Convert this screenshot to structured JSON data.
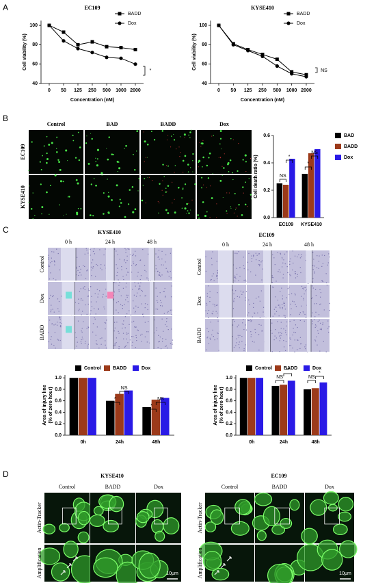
{
  "chart_data": [
    {
      "type": "line",
      "title": "EC109",
      "x_label": "Concentration (nM)",
      "y_label": "Cell viability (%)",
      "categories": [
        "0",
        "50",
        "125",
        "250",
        "500",
        "1000",
        "2000"
      ],
      "series": [
        {
          "name": "BADD",
          "color": "#000000",
          "marker": "square",
          "values": [
            100,
            93,
            80,
            83,
            78,
            77,
            75
          ]
        },
        {
          "name": "Dox",
          "color": "#000000",
          "marker": "circle",
          "values": [
            100,
            84,
            76,
            72,
            67,
            66,
            60
          ]
        }
      ],
      "ylim": [
        40,
        105
      ],
      "yticks": [
        40,
        60,
        80,
        100
      ],
      "legend": "top-right",
      "annotations": [
        "*"
      ]
    },
    {
      "type": "line",
      "title": "KYSE410",
      "x_label": "Concentration (nM)",
      "y_label": "Cell viability (%)",
      "categories": [
        "0",
        "50",
        "125",
        "250",
        "500",
        "1000",
        "2000"
      ],
      "series": [
        {
          "name": "BADD",
          "color": "#000000",
          "marker": "square",
          "values": [
            100,
            81,
            75,
            70,
            65,
            52,
            49
          ]
        },
        {
          "name": "Dox",
          "color": "#000000",
          "marker": "circle",
          "values": [
            100,
            80,
            74,
            68,
            58,
            50,
            47
          ]
        }
      ],
      "ylim": [
        40,
        105
      ],
      "yticks": [
        40,
        60,
        80,
        100
      ],
      "legend": "top-right",
      "annotations": [
        "NS"
      ]
    },
    {
      "type": "bar",
      "y_label": [
        "Cell death ratio (%)"
      ],
      "categories": [
        "EC109",
        "KYSE410"
      ],
      "series": [
        {
          "name": "BAD",
          "color": "#000000",
          "values": [
            0.25,
            0.32
          ]
        },
        {
          "name": "BADD",
          "color": "#9c3a1a",
          "values": [
            0.24,
            0.47
          ]
        },
        {
          "name": "Dox",
          "color": "#2a1ae6",
          "values": [
            0.43,
            0.5
          ]
        }
      ],
      "ylim": [
        0,
        0.6
      ],
      "yticks": [
        {
          "value": 0,
          "label": "0.0"
        },
        0.2,
        0.4,
        0.6
      ],
      "legend": "right",
      "annotations": [
        "NS",
        "*",
        "*",
        "NS"
      ]
    },
    {
      "type": "bar",
      "y_label": [
        "Area of injury line",
        "(% of zero hour)"
      ],
      "categories": [
        "0h",
        "24h",
        "48h"
      ],
      "series": [
        {
          "name": "Control",
          "color": "#000000",
          "values": [
            1,
            0.6,
            0.49
          ]
        },
        {
          "name": "BADD",
          "color": "#9c3a1a",
          "values": [
            1,
            0.72,
            0.62
          ]
        },
        {
          "name": "Dox",
          "color": "#2a1ae6",
          "values": [
            1,
            0.78,
            0.65
          ]
        }
      ],
      "ylim": [
        0,
        1.05
      ],
      "yticks": [
        {
          "value": 0,
          "label": "0.0"
        },
        0.2,
        0.4,
        0.6,
        0.8,
        {
          "value": 1,
          "label": "1.0"
        }
      ],
      "legend": "top",
      "annotations": [
        "*",
        "NS",
        "*",
        "NS"
      ]
    },
    {
      "type": "bar",
      "y_label": [
        "Area of injury line",
        "(% of zero hour)"
      ],
      "categories": [
        "0h",
        "24h",
        "48h"
      ],
      "series": [
        {
          "name": "Control",
          "color": "#000000",
          "values": [
            1,
            0.86,
            0.8
          ]
        },
        {
          "name": "BADD",
          "color": "#9c3a1a",
          "values": [
            1,
            0.88,
            0.82
          ]
        },
        {
          "name": "Dox",
          "color": "#2a1ae6",
          "values": [
            1,
            0.95,
            0.92
          ]
        }
      ],
      "ylim": [
        0,
        1.05
      ],
      "yticks": [
        {
          "value": 0,
          "label": "0.0"
        },
        0.2,
        0.4,
        0.6,
        0.8,
        {
          "value": 1,
          "label": "1.0"
        }
      ],
      "legend": "top",
      "annotations": [
        "NS",
        "**",
        "NS",
        "*"
      ]
    }
  ],
  "panel_labels": [
    "A",
    "B",
    "C",
    "D"
  ],
  "panel_b": {
    "columns": [
      "Control",
      "BAD",
      "BADD",
      "Dox"
    ],
    "rows": [
      "EC109",
      "KYSE410"
    ]
  },
  "panel_c": [
    {
      "title": "KYSE410",
      "times": [
        "0 h",
        "24 h",
        "48 h"
      ],
      "rows": [
        "Control",
        "Dox",
        "BADD"
      ]
    },
    {
      "title": "EC109",
      "times": [
        "0 h",
        "24 h",
        "48 h"
      ],
      "rows": [
        "Control",
        "Dox",
        "BADD"
      ]
    }
  ],
  "panel_d": [
    {
      "title": "KYSE410",
      "columns": [
        "Control",
        "BADD",
        "Dox"
      ],
      "rows": [
        "Actin-Tracker",
        "Amplification"
      ],
      "scale_bar": "10μm"
    },
    {
      "title": "EC109",
      "columns": [
        "Control",
        "BADD",
        "Dox"
      ],
      "rows": [
        "Actin-Tracker",
        "Amplification"
      ],
      "scale_bar": "10μm"
    }
  ]
}
